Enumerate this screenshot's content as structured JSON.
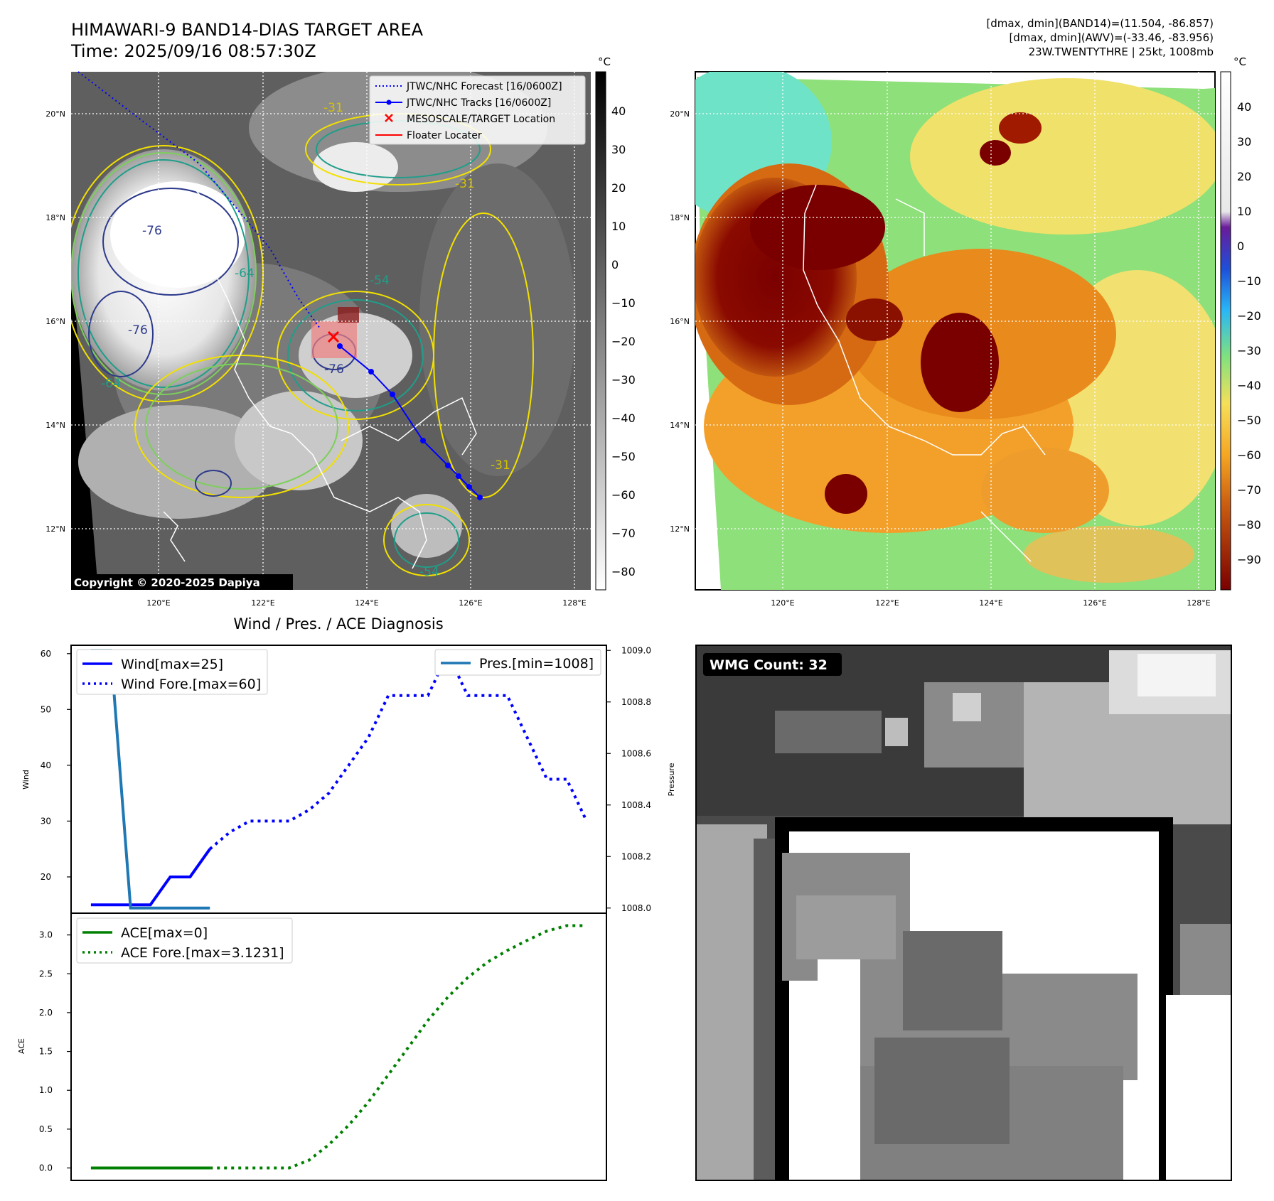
{
  "header": {
    "title": "HIMAWARI-9 BAND14-DIAS TARGET AREA",
    "time": "Time: 2025/09/16 08:57:30Z",
    "info_line1": "[dmax, dmin](BAND14)=(11.504, -86.857)",
    "info_line2": "[dmax, dmin](AWV)=(-33.46, -83.956)",
    "info_line3": "23W.TWENTYTHRE | 25kt, 1008mb"
  },
  "map_panel": {
    "lon_ticks": [
      "120°E",
      "122°E",
      "124°E",
      "126°E",
      "128°E"
    ],
    "lat_ticks": [
      "20°N",
      "18°N",
      "16°N",
      "14°N",
      "12°N"
    ],
    "copyright": "Copyright © 2020-2025 Dapiya",
    "contour_labels": [
      "-76",
      "-76",
      "-76",
      "-64",
      "-64",
      "-54",
      "-31",
      "-31",
      "-54",
      "-31"
    ],
    "legend": [
      {
        "label": "JTWC/NHC Forecast [16/0600Z]",
        "color": "#0000ff",
        "style": "dotted"
      },
      {
        "label": "JTWC/NHC Tracks [16/0600Z]",
        "color": "#0000ff",
        "style": "solid-marker"
      },
      {
        "label": "MESOSCALE/TARGET Location",
        "color": "#ff0000",
        "style": "x"
      },
      {
        "label": "Floater Locater",
        "color": "#ff0000",
        "style": "solid"
      }
    ]
  },
  "colorbar1": {
    "unit": "°C",
    "ticks": [
      "40",
      "30",
      "20",
      "10",
      "0",
      "−10",
      "−20",
      "−30",
      "−40",
      "−50",
      "−60",
      "−70",
      "−80"
    ]
  },
  "colorbar2": {
    "unit": "°C",
    "ticks": [
      "40",
      "30",
      "20",
      "10",
      "0",
      "−10",
      "−20",
      "−30",
      "−40",
      "−50",
      "−60",
      "−70",
      "−80",
      "−90"
    ]
  },
  "wmg": {
    "label": "WMG Count: 32"
  },
  "colors": {
    "wind": "#0000ff",
    "pressure": "#1f77b4",
    "ace": "#008000",
    "track": "#0000ff",
    "target": "#ff0000"
  },
  "chart_data": [
    {
      "type": "line",
      "title": "Wind / Pres. / ACE Diagnosis",
      "ylabel": "Wind",
      "y2label": "Pressure",
      "ylim": [
        13.5,
        61.5
      ],
      "y2lim": [
        1007.98,
        1009.02
      ],
      "yticks": [
        "60",
        "50",
        "40",
        "30",
        "20"
      ],
      "y2ticks": [
        "1009.0",
        "1008.8",
        "1008.6",
        "1008.4",
        "1008.2",
        "1008.0"
      ],
      "xlim": [
        0,
        27
      ],
      "series": [
        {
          "name": "Wind[max=25]",
          "axis": "left",
          "style": "solid",
          "color": "#0000ff",
          "x": [
            1,
            2,
            3,
            4,
            5,
            6,
            7
          ],
          "y": [
            15,
            15,
            15,
            15,
            20,
            20,
            25
          ]
        },
        {
          "name": "Wind Fore.[max=60]",
          "axis": "left",
          "style": "dotted",
          "color": "#0000ff",
          "x": [
            7,
            8,
            9,
            10,
            11,
            12,
            13,
            14,
            15,
            16,
            17,
            18,
            19,
            20,
            21,
            22,
            23,
            24,
            25,
            26
          ],
          "y": [
            25,
            28,
            30,
            30,
            30,
            32,
            35,
            40,
            45,
            52.5,
            52.5,
            52.5,
            60,
            52.5,
            52.5,
            52.5,
            45,
            37.5,
            37.5,
            30
          ]
        },
        {
          "name": "Pres.[min=1008]",
          "axis": "right",
          "style": "solid",
          "color": "#1f77b4",
          "x": [
            1,
            2,
            3,
            4,
            5,
            6,
            7
          ],
          "y": [
            1009,
            1009,
            1008,
            1008,
            1008,
            1008,
            1008
          ]
        }
      ]
    },
    {
      "type": "line",
      "ylabel": "ACE",
      "ylim": [
        -0.16,
        3.28
      ],
      "yticks": [
        "3.0",
        "2.5",
        "2.0",
        "1.5",
        "1.0",
        "0.5",
        "0.0"
      ],
      "xlim": [
        0,
        27
      ],
      "series": [
        {
          "name": "ACE[max=0]",
          "style": "solid",
          "color": "#008000",
          "x": [
            1,
            2,
            3,
            4,
            5,
            6,
            7
          ],
          "y": [
            0,
            0,
            0,
            0,
            0,
            0,
            0
          ]
        },
        {
          "name": "ACE Fore.[max=3.1231]",
          "style": "dotted",
          "color": "#008000",
          "x": [
            7,
            8,
            9,
            10,
            11,
            12,
            13,
            14,
            15,
            16,
            17,
            18,
            19,
            20,
            21,
            22,
            23,
            24,
            25,
            26
          ],
          "y": [
            0,
            0,
            0,
            0,
            0,
            0.1,
            0.3,
            0.55,
            0.85,
            1.2,
            1.55,
            1.9,
            2.2,
            2.45,
            2.65,
            2.8,
            2.93,
            3.05,
            3.12,
            3.12
          ]
        }
      ]
    }
  ]
}
